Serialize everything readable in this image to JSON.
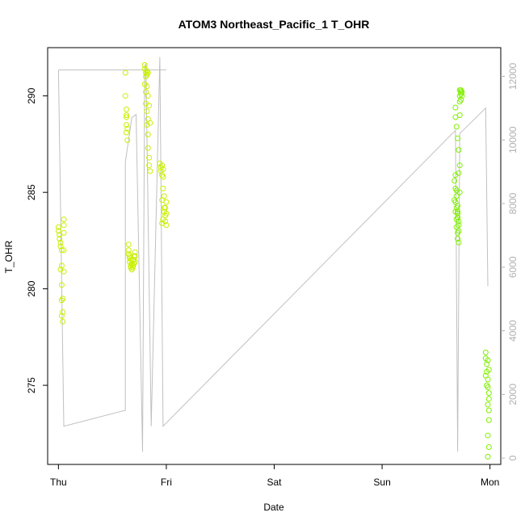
{
  "chart_data": {
    "type": "scatter",
    "title": "ATOM3 Northeast_Pacific_1 T_OHR",
    "xlabel": "Date",
    "ylabel": "T_OHR",
    "x_unit": "days since Thu 00:00",
    "xlim": [
      -0.1,
      4.1
    ],
    "ylim": [
      270.9,
      292.5
    ],
    "y2lim": [
      -200,
      12900
    ],
    "x_ticks": [
      {
        "value": 0,
        "label": "Thu"
      },
      {
        "value": 1,
        "label": "Fri"
      },
      {
        "value": 2,
        "label": "Sat"
      },
      {
        "value": 3,
        "label": "Sun"
      },
      {
        "value": 4,
        "label": "Mon"
      }
    ],
    "y_ticks": [
      {
        "value": 275,
        "label": "275"
      },
      {
        "value": 280,
        "label": "280"
      },
      {
        "value": 285,
        "label": "285"
      },
      {
        "value": 290,
        "label": "290"
      }
    ],
    "y2_ticks": [
      {
        "value": 0,
        "label": "0"
      },
      {
        "value": 2000,
        "label": "2000"
      },
      {
        "value": 4000,
        "label": "4000"
      },
      {
        "value": 6000,
        "label": "6000"
      },
      {
        "value": 8000,
        "label": "8000"
      },
      {
        "value": 10000,
        "label": "10000"
      },
      {
        "value": 12000,
        "label": "12000"
      }
    ],
    "grid": false,
    "points_color": "#c8f000",
    "points_color_late": "#80f000",
    "line_color": "#c0c0c0",
    "points": [
      [
        0.0,
        283.2
      ],
      [
        0.0,
        283.0
      ],
      [
        0.01,
        282.8
      ],
      [
        0.01,
        282.6
      ],
      [
        0.02,
        282.4
      ],
      [
        0.02,
        282.2
      ],
      [
        0.03,
        282.0
      ],
      [
        0.03,
        281.2
      ],
      [
        0.03,
        280.2
      ],
      [
        0.03,
        279.4
      ],
      [
        0.03,
        278.6
      ],
      [
        0.04,
        278.3
      ],
      [
        0.04,
        278.8
      ],
      [
        0.04,
        279.5
      ],
      [
        0.05,
        280.9
      ],
      [
        0.05,
        282.0
      ],
      [
        0.05,
        282.9
      ],
      [
        0.05,
        283.3
      ],
      [
        0.05,
        283.6
      ],
      [
        0.02,
        281.0
      ],
      [
        0.62,
        291.2
      ],
      [
        0.62,
        290.0
      ],
      [
        0.63,
        289.3
      ],
      [
        0.63,
        288.9
      ],
      [
        0.63,
        288.5
      ],
      [
        0.63,
        288.1
      ],
      [
        0.64,
        287.7
      ],
      [
        0.63,
        289.0
      ],
      [
        0.64,
        288.3
      ],
      [
        0.65,
        282.3
      ],
      [
        0.65,
        282.0
      ],
      [
        0.65,
        281.8
      ],
      [
        0.66,
        281.6
      ],
      [
        0.66,
        281.4
      ],
      [
        0.67,
        281.2
      ],
      [
        0.67,
        281.1
      ],
      [
        0.68,
        281.0
      ],
      [
        0.68,
        281.0
      ],
      [
        0.69,
        281.1
      ],
      [
        0.69,
        281.2
      ],
      [
        0.7,
        281.3
      ],
      [
        0.7,
        281.5
      ],
      [
        0.71,
        281.7
      ],
      [
        0.71,
        281.9
      ],
      [
        0.66,
        281.7
      ],
      [
        0.67,
        281.5
      ],
      [
        0.68,
        281.3
      ],
      [
        0.69,
        281.5
      ],
      [
        0.7,
        281.7
      ],
      [
        0.71,
        281.4
      ],
      [
        0.8,
        291.6
      ],
      [
        0.8,
        291.4
      ],
      [
        0.81,
        291.2
      ],
      [
        0.81,
        291.0
      ],
      [
        0.82,
        291.3
      ],
      [
        0.82,
        291.1
      ],
      [
        0.83,
        291.2
      ],
      [
        0.8,
        290.6
      ],
      [
        0.81,
        290.2
      ],
      [
        0.82,
        290.5
      ],
      [
        0.83,
        290.0
      ],
      [
        0.81,
        289.6
      ],
      [
        0.82,
        289.2
      ],
      [
        0.83,
        288.8
      ],
      [
        0.82,
        288.5
      ],
      [
        0.83,
        288.0
      ],
      [
        0.83,
        287.3
      ],
      [
        0.84,
        286.8
      ],
      [
        0.84,
        286.4
      ],
      [
        0.85,
        286.1
      ],
      [
        0.85,
        288.6
      ],
      [
        0.84,
        289.5
      ],
      [
        0.94,
        286.5
      ],
      [
        0.95,
        286.3
      ],
      [
        0.95,
        286.1
      ],
      [
        0.96,
        285.9
      ],
      [
        0.96,
        286.4
      ],
      [
        0.97,
        286.2
      ],
      [
        0.97,
        285.8
      ],
      [
        0.97,
        285.2
      ],
      [
        0.96,
        284.6
      ],
      [
        0.98,
        284.8
      ],
      [
        0.98,
        284.2
      ],
      [
        0.99,
        283.8
      ],
      [
        0.99,
        283.5
      ],
      [
        1.0,
        283.3
      ],
      [
        1.0,
        284.5
      ],
      [
        0.98,
        284.0
      ],
      [
        0.97,
        283.6
      ],
      [
        0.99,
        284.2
      ],
      [
        0.96,
        283.4
      ],
      [
        1.0,
        283.9
      ],
      [
        3.68,
        289.4
      ],
      [
        3.68,
        288.9
      ],
      [
        3.69,
        288.4
      ],
      [
        3.7,
        287.8
      ],
      [
        3.71,
        287.2
      ],
      [
        3.72,
        286.4
      ],
      [
        3.68,
        285.9
      ],
      [
        3.67,
        285.6
      ],
      [
        3.68,
        285.2
      ],
      [
        3.69,
        284.8
      ],
      [
        3.68,
        284.5
      ],
      [
        3.69,
        284.2
      ],
      [
        3.7,
        284.0
      ],
      [
        3.7,
        283.7
      ],
      [
        3.71,
        283.5
      ],
      [
        3.69,
        283.2
      ],
      [
        3.7,
        282.9
      ],
      [
        3.7,
        282.6
      ],
      [
        3.71,
        282.4
      ],
      [
        3.67,
        284.6
      ],
      [
        3.68,
        284.0
      ],
      [
        3.69,
        283.6
      ],
      [
        3.7,
        283.9
      ],
      [
        3.71,
        283.0
      ],
      [
        3.72,
        285.0
      ],
      [
        3.71,
        286.0
      ],
      [
        3.72,
        289.0
      ],
      [
        3.72,
        289.7
      ],
      [
        3.72,
        290.0
      ],
      [
        3.73,
        290.2
      ],
      [
        3.73,
        290.3
      ],
      [
        3.74,
        290.2
      ],
      [
        3.73,
        290.1
      ],
      [
        3.74,
        290.0
      ],
      [
        3.72,
        290.3
      ],
      [
        3.73,
        289.8
      ],
      [
        3.69,
        285.1
      ],
      [
        3.7,
        284.3
      ],
      [
        3.71,
        283.3
      ],
      [
        3.96,
        276.7
      ],
      [
        3.96,
        276.4
      ],
      [
        3.97,
        276.1
      ],
      [
        3.97,
        275.7
      ],
      [
        3.98,
        275.3
      ],
      [
        3.98,
        274.9
      ],
      [
        3.99,
        274.6
      ],
      [
        3.99,
        274.3
      ],
      [
        3.98,
        274.0
      ],
      [
        3.99,
        273.7
      ],
      [
        3.99,
        273.2
      ],
      [
        3.98,
        272.4
      ],
      [
        3.99,
        271.8
      ],
      [
        3.98,
        271.3
      ],
      [
        3.97,
        275.0
      ],
      [
        3.98,
        276.3
      ],
      [
        3.96,
        275.5
      ],
      [
        3.99,
        275.8
      ]
    ],
    "line_y2": [
      [
        0.0,
        12200
      ],
      [
        0.0,
        12200
      ],
      [
        0.05,
        1000
      ],
      [
        0.62,
        1500
      ],
      [
        0.62,
        9300
      ],
      [
        0.68,
        10700
      ],
      [
        0.72,
        10800
      ],
      [
        0.78,
        200
      ],
      [
        0.8,
        12300
      ],
      [
        0.81,
        12400
      ],
      [
        0.86,
        1000
      ],
      [
        0.94,
        12600
      ],
      [
        0.97,
        1000
      ],
      [
        3.68,
        10300
      ],
      [
        3.7,
        200
      ],
      [
        3.72,
        10200
      ],
      [
        3.96,
        11000
      ],
      [
        3.98,
        5400
      ]
    ],
    "line_top": [
      [
        0.0,
        12200
      ],
      [
        1.0,
        12200
      ]
    ]
  }
}
